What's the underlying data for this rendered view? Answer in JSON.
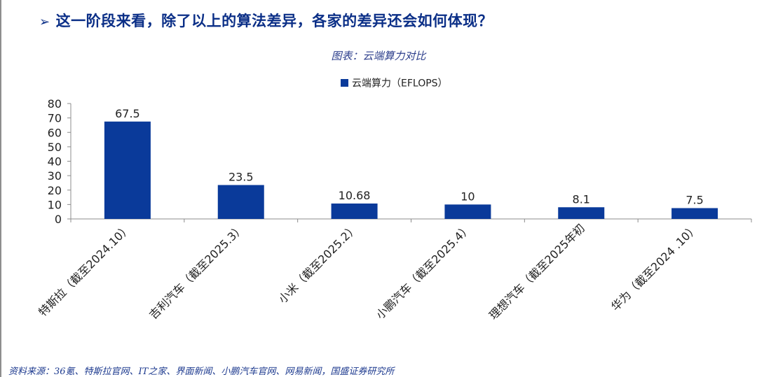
{
  "page": {
    "heading": "这一阶段来看，除了以上的算法差异，各家的差异还会如何体现？",
    "heading_bullet": "➢",
    "source": "资料来源：36氪、特斯拉官网、IT之家、界面新闻、小鹏汽车官网、网易新闻，国盛证券研究所"
  },
  "chart_data": {
    "type": "bar",
    "title": "图表：云端算力对比",
    "categories": [
      "特斯拉（截至2024.10）",
      "吉利汽车（截至2025.3）",
      "小米（截至2025.2）",
      "小鹏汽车（截至2025.4）",
      "理想汽车（截至2025年初",
      "华为（截至2024 .10）"
    ],
    "series": [
      {
        "name": "云端算力（EFLOPS）",
        "values": [
          67.5,
          23.5,
          10.68,
          10,
          8.1,
          7.5
        ]
      }
    ],
    "data_labels": [
      "67.5",
      "23.5",
      "10.68",
      "10",
      "8.1",
      "7.5"
    ],
    "yticks": [
      0,
      10,
      20,
      30,
      40,
      50,
      60,
      70,
      80
    ],
    "ylim": [
      0,
      80
    ],
    "xlabel": "",
    "ylabel": "",
    "legend_position": "top-center",
    "grid": false,
    "colors": {
      "bar": "#0a3a9a",
      "axis": "#8c8c8c",
      "text": "#222222"
    }
  }
}
